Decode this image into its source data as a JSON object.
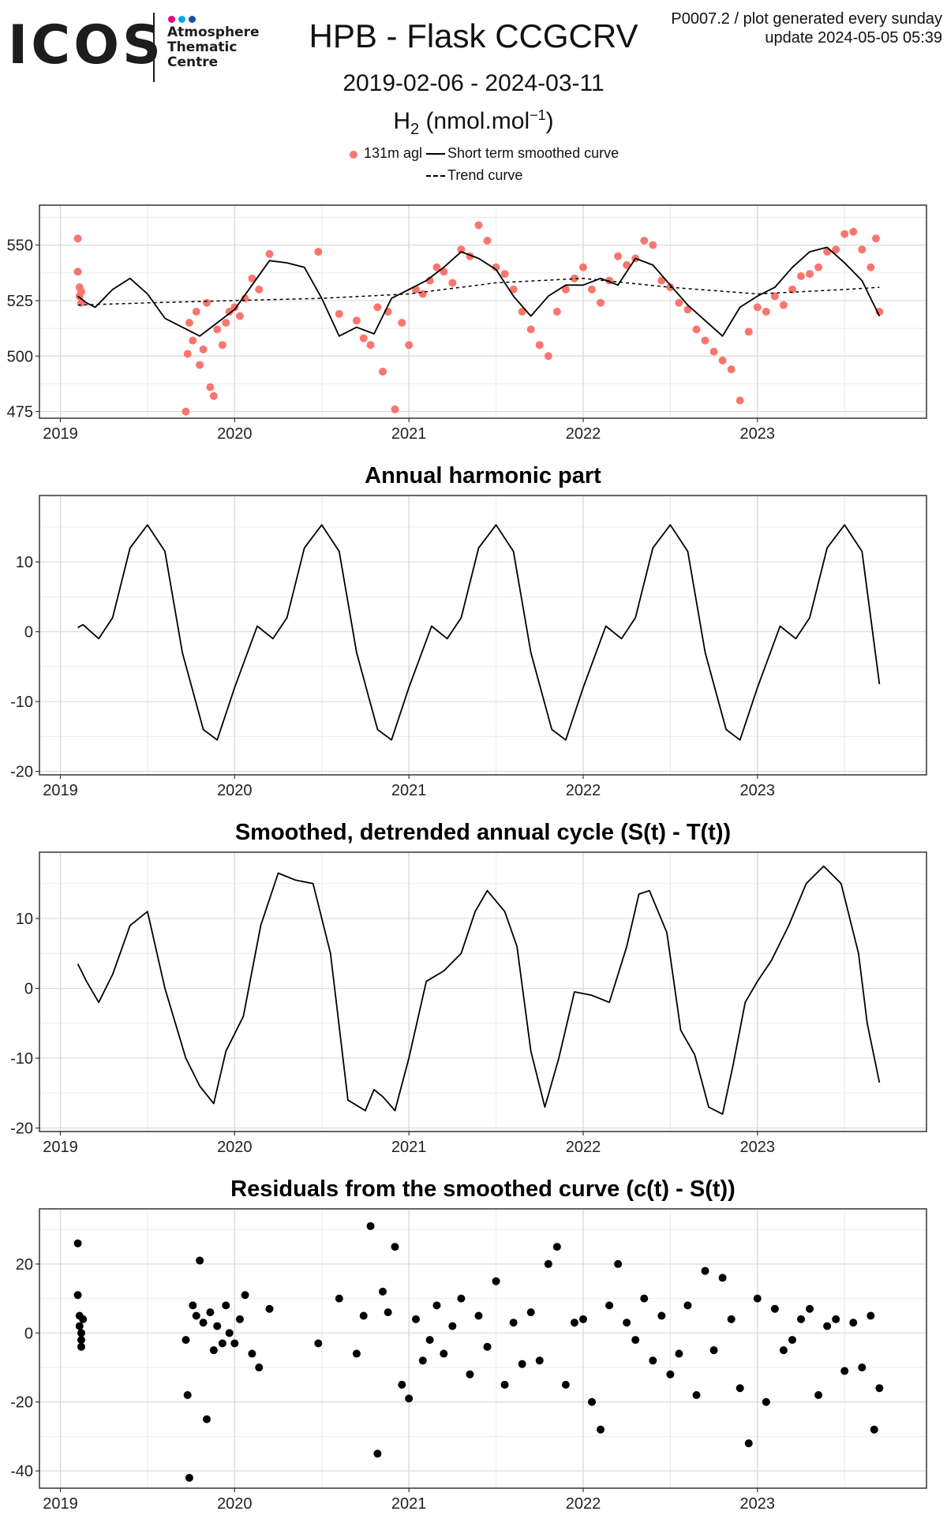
{
  "header": {
    "logo_text": "ICOS",
    "logo_sub": [
      "Atmosphere",
      "Thematic",
      "Centre"
    ],
    "logo_dot_colors": [
      "#e6007e",
      "#00a9e0",
      "#1e4e9d"
    ],
    "title": "HPB - Flask CCGCRV",
    "date_range": "2019-02-06 - 2024-03-11",
    "species_base": "H",
    "species_sub": "2",
    "species_unit_pre": " (nmol.mol",
    "species_sup": "−1",
    "species_unit_post": ")",
    "plot_id": "P0007.2 / plot generated every sunday",
    "update": "update  2024-05-05 05:39"
  },
  "legend": {
    "points_label": "131m agl",
    "smooth_label": "Short term smoothed curve",
    "trend_label": "Trend curve"
  },
  "colors": {
    "points": "#F8766D",
    "line": "#000000",
    "grid_major": "#D9D9D9",
    "grid_minor": "#EBEBEB",
    "border": "#333333"
  },
  "chart_data": [
    {
      "type": "scatter",
      "id": "observations",
      "title": "",
      "xlabel": "",
      "ylabel": "",
      "x_ticks": [
        "2019",
        "2020",
        "2021",
        "2022",
        "2023"
      ],
      "y_ticks": [
        475,
        500,
        525,
        550
      ],
      "ylim": [
        472,
        568
      ],
      "xlim": [
        2018.88,
        2023.97
      ],
      "grid": true,
      "series": [
        {
          "name": "131m agl",
          "kind": "points",
          "color": "#F8766D",
          "x": [
            2019.1,
            2019.1,
            2019.11,
            2019.11,
            2019.12,
            2019.12,
            2019.72,
            2019.73,
            2019.74,
            2019.76,
            2019.78,
            2019.8,
            2019.82,
            2019.84,
            2019.86,
            2019.88,
            2019.9,
            2019.93,
            2019.95,
            2019.97,
            2020.0,
            2020.03,
            2020.06,
            2020.1,
            2020.14,
            2020.2,
            2020.48,
            2020.6,
            2020.7,
            2020.74,
            2020.78,
            2020.82,
            2020.85,
            2020.88,
            2020.92,
            2020.96,
            2021.0,
            2021.04,
            2021.08,
            2021.12,
            2021.16,
            2021.2,
            2021.25,
            2021.3,
            2021.35,
            2021.4,
            2021.45,
            2021.5,
            2021.55,
            2021.6,
            2021.65,
            2021.7,
            2021.75,
            2021.8,
            2021.85,
            2021.9,
            2021.95,
            2022.0,
            2022.05,
            2022.1,
            2022.15,
            2022.2,
            2022.25,
            2022.3,
            2022.35,
            2022.4,
            2022.45,
            2022.5,
            2022.55,
            2022.6,
            2022.65,
            2022.7,
            2022.75,
            2022.8,
            2022.85,
            2022.9,
            2022.95,
            2023.0,
            2023.05,
            2023.1,
            2023.15,
            2023.2,
            2023.25,
            2023.3,
            2023.35,
            2023.4,
            2023.45,
            2023.5,
            2023.55,
            2023.6,
            2023.65,
            2023.68,
            2023.7
          ],
          "y": [
            553,
            538,
            531,
            527,
            524,
            529,
            475,
            501,
            515,
            507,
            520,
            496,
            503,
            524,
            486,
            482,
            512,
            505,
            515,
            520,
            522,
            518,
            526,
            535,
            530,
            546,
            547,
            519,
            516,
            508,
            505,
            522,
            493,
            520,
            476,
            515,
            505,
            530,
            528,
            534,
            540,
            538,
            533,
            548,
            545,
            559,
            552,
            540,
            537,
            530,
            520,
            512,
            505,
            500,
            520,
            530,
            535,
            540,
            530,
            524,
            534,
            545,
            541,
            544,
            552,
            550,
            534,
            531,
            524,
            521,
            512,
            507,
            502,
            498,
            494,
            480,
            511,
            522,
            520,
            527,
            523,
            530,
            536,
            537,
            540,
            547,
            548,
            555,
            556,
            548,
            540,
            553,
            520
          ]
        },
        {
          "name": "Short term smoothed curve",
          "kind": "line",
          "x": [
            2019.1,
            2019.15,
            2019.2,
            2019.3,
            2019.4,
            2019.5,
            2019.6,
            2019.7,
            2019.8,
            2019.9,
            2020.0,
            2020.1,
            2020.2,
            2020.3,
            2020.4,
            2020.5,
            2020.6,
            2020.7,
            2020.8,
            2020.9,
            2021.0,
            2021.1,
            2021.2,
            2021.3,
            2021.4,
            2021.5,
            2021.6,
            2021.7,
            2021.8,
            2021.9,
            2022.0,
            2022.1,
            2022.2,
            2022.3,
            2022.4,
            2022.5,
            2022.6,
            2022.7,
            2022.8,
            2022.9,
            2023.0,
            2023.1,
            2023.2,
            2023.3,
            2023.4,
            2023.5,
            2023.6,
            2023.7
          ],
          "y": [
            527,
            524,
            522,
            530,
            535,
            528,
            517,
            513,
            509,
            515,
            521,
            532,
            543,
            542,
            540,
            526,
            509,
            513,
            510,
            526,
            530,
            534,
            540,
            547,
            544,
            539,
            527,
            518,
            527,
            532,
            532,
            535,
            532,
            544,
            541,
            532,
            523,
            516,
            509,
            522,
            527,
            531,
            540,
            547,
            549,
            542,
            534,
            518
          ]
        },
        {
          "name": "Trend curve",
          "kind": "dashed",
          "x": [
            2019.1,
            2019.5,
            2020.0,
            2020.5,
            2021.0,
            2021.5,
            2022.0,
            2022.5,
            2023.0,
            2023.5,
            2023.7
          ],
          "y": [
            523,
            524,
            525,
            526,
            528,
            533,
            535,
            531,
            528,
            530,
            531
          ]
        }
      ]
    },
    {
      "type": "line",
      "id": "annual-harmonic",
      "title": "Annual harmonic part",
      "xlabel": "",
      "ylabel": "",
      "x_ticks": [
        "2019",
        "2020",
        "2021",
        "2022",
        "2023"
      ],
      "y_ticks": [
        -20,
        -10,
        0,
        10
      ],
      "ylim": [
        -20.5,
        19.5
      ],
      "xlim": [
        2018.88,
        2023.97
      ],
      "grid": true,
      "series": [
        {
          "kind": "line",
          "x": [
            2019.1,
            2019.13,
            2019.22,
            2019.3,
            2019.4,
            2019.5,
            2019.6,
            2019.7,
            2019.82,
            2019.9,
            2020.0,
            2020.13,
            2020.22,
            2020.3,
            2020.4,
            2020.5,
            2020.6,
            2020.7,
            2020.82,
            2020.9,
            2021.0,
            2021.13,
            2021.22,
            2021.3,
            2021.4,
            2021.5,
            2021.6,
            2021.7,
            2021.82,
            2021.9,
            2022.0,
            2022.13,
            2022.22,
            2022.3,
            2022.4,
            2022.5,
            2022.6,
            2022.7,
            2022.82,
            2022.9,
            2023.0,
            2023.13,
            2023.22,
            2023.3,
            2023.4,
            2023.5,
            2023.6,
            2023.7
          ],
          "y": [
            0.6,
            1.0,
            -1.0,
            2.0,
            12.0,
            15.3,
            11.5,
            -3.0,
            -14.0,
            -15.5,
            -8.0,
            0.8,
            -1.0,
            2.0,
            12.0,
            15.3,
            11.5,
            -3.0,
            -14.0,
            -15.5,
            -8.0,
            0.8,
            -1.0,
            2.0,
            12.0,
            15.3,
            11.5,
            -3.0,
            -14.0,
            -15.5,
            -8.0,
            0.8,
            -1.0,
            2.0,
            12.0,
            15.3,
            11.5,
            -3.0,
            -14.0,
            -15.5,
            -8.0,
            0.8,
            -1.0,
            2.0,
            12.0,
            15.3,
            11.5,
            -7.5
          ]
        }
      ]
    },
    {
      "type": "line",
      "id": "detrended-cycle",
      "title": "Smoothed, detrended annual cycle (S(t) - T(t))",
      "xlabel": "",
      "ylabel": "",
      "x_ticks": [
        "2019",
        "2020",
        "2021",
        "2022",
        "2023"
      ],
      "y_ticks": [
        -20,
        -10,
        0,
        10
      ],
      "ylim": [
        -20.5,
        19.5
      ],
      "xlim": [
        2018.88,
        2023.97
      ],
      "grid": true,
      "series": [
        {
          "kind": "line",
          "x": [
            2019.1,
            2019.15,
            2019.22,
            2019.3,
            2019.4,
            2019.5,
            2019.6,
            2019.72,
            2019.8,
            2019.88,
            2019.95,
            2020.05,
            2020.15,
            2020.25,
            2020.35,
            2020.45,
            2020.55,
            2020.65,
            2020.75,
            2020.8,
            2020.85,
            2020.92,
            2021.0,
            2021.1,
            2021.2,
            2021.3,
            2021.38,
            2021.45,
            2021.55,
            2021.62,
            2021.7,
            2021.78,
            2021.86,
            2021.95,
            2022.05,
            2022.15,
            2022.25,
            2022.32,
            2022.38,
            2022.48,
            2022.56,
            2022.64,
            2022.72,
            2022.8,
            2022.86,
            2022.93,
            2023.0,
            2023.08,
            2023.18,
            2023.28,
            2023.38,
            2023.48,
            2023.58,
            2023.63,
            2023.7
          ],
          "y": [
            3.5,
            1.0,
            -2.0,
            2.0,
            9.0,
            11.0,
            0.0,
            -10.0,
            -14.0,
            -16.5,
            -9.0,
            -4.0,
            9.0,
            16.5,
            15.5,
            15.0,
            5.0,
            -16.0,
            -17.5,
            -14.5,
            -15.5,
            -17.5,
            -10.0,
            1.0,
            2.5,
            5.0,
            11.0,
            14.0,
            11.0,
            6.0,
            -9.0,
            -17.0,
            -10.0,
            -0.5,
            -1.0,
            -2.0,
            6.0,
            13.5,
            14.0,
            8.0,
            -6.0,
            -9.5,
            -17.0,
            -18.0,
            -11.0,
            -2.0,
            1.0,
            4.0,
            9.0,
            15.0,
            17.5,
            15.0,
            5.0,
            -5.0,
            -13.5
          ]
        }
      ]
    },
    {
      "type": "scatter",
      "id": "residuals",
      "title": "Residuals from the smoothed curve (c(t) - S(t))",
      "xlabel": "",
      "ylabel": "",
      "x_ticks": [
        "2019",
        "2020",
        "2021",
        "2022",
        "2023"
      ],
      "y_ticks": [
        -40,
        -20,
        0,
        20
      ],
      "ylim": [
        -45,
        36
      ],
      "xlim": [
        2018.88,
        2023.97
      ],
      "grid": true,
      "series": [
        {
          "kind": "points",
          "color": "#000000",
          "x": [
            2019.1,
            2019.1,
            2019.11,
            2019.11,
            2019.12,
            2019.12,
            2019.12,
            2019.13,
            2019.72,
            2019.73,
            2019.74,
            2019.76,
            2019.78,
            2019.8,
            2019.82,
            2019.84,
            2019.86,
            2019.88,
            2019.9,
            2019.93,
            2019.95,
            2019.97,
            2020.0,
            2020.03,
            2020.06,
            2020.1,
            2020.14,
            2020.2,
            2020.48,
            2020.6,
            2020.7,
            2020.74,
            2020.78,
            2020.82,
            2020.85,
            2020.88,
            2020.92,
            2020.96,
            2021.0,
            2021.04,
            2021.08,
            2021.12,
            2021.16,
            2021.2,
            2021.25,
            2021.3,
            2021.35,
            2021.4,
            2021.45,
            2021.5,
            2021.55,
            2021.6,
            2021.65,
            2021.7,
            2021.75,
            2021.8,
            2021.85,
            2021.9,
            2021.95,
            2022.0,
            2022.05,
            2022.1,
            2022.15,
            2022.2,
            2022.25,
            2022.3,
            2022.35,
            2022.4,
            2022.45,
            2022.5,
            2022.55,
            2022.6,
            2022.65,
            2022.7,
            2022.75,
            2022.8,
            2022.85,
            2022.9,
            2022.95,
            2023.0,
            2023.05,
            2023.1,
            2023.15,
            2023.2,
            2023.25,
            2023.3,
            2023.35,
            2023.4,
            2023.45,
            2023.5,
            2023.55,
            2023.6,
            2023.65,
            2023.67,
            2023.7
          ],
          "y": [
            26,
            11,
            5,
            2,
            0,
            -2,
            -4,
            4,
            -2,
            -18,
            -42,
            8,
            5,
            21,
            3,
            -25,
            6,
            -5,
            2,
            -3,
            8,
            0,
            -3,
            4,
            11,
            -6,
            -10,
            7,
            -3,
            10,
            -6,
            5,
            31,
            -35,
            12,
            6,
            25,
            -15,
            -19,
            4,
            -8,
            -2,
            8,
            -6,
            2,
            10,
            -12,
            5,
            -4,
            15,
            -15,
            3,
            -9,
            6,
            -8,
            20,
            25,
            -15,
            3,
            4,
            -20,
            -28,
            8,
            20,
            3,
            -2,
            10,
            -8,
            5,
            -12,
            -6,
            8,
            -18,
            18,
            -5,
            16,
            4,
            -16,
            -32,
            10,
            -20,
            7,
            -5,
            -2,
            4,
            7,
            -18,
            2,
            4,
            -11,
            3,
            -10,
            5,
            -28,
            -16
          ]
        }
      ]
    }
  ]
}
